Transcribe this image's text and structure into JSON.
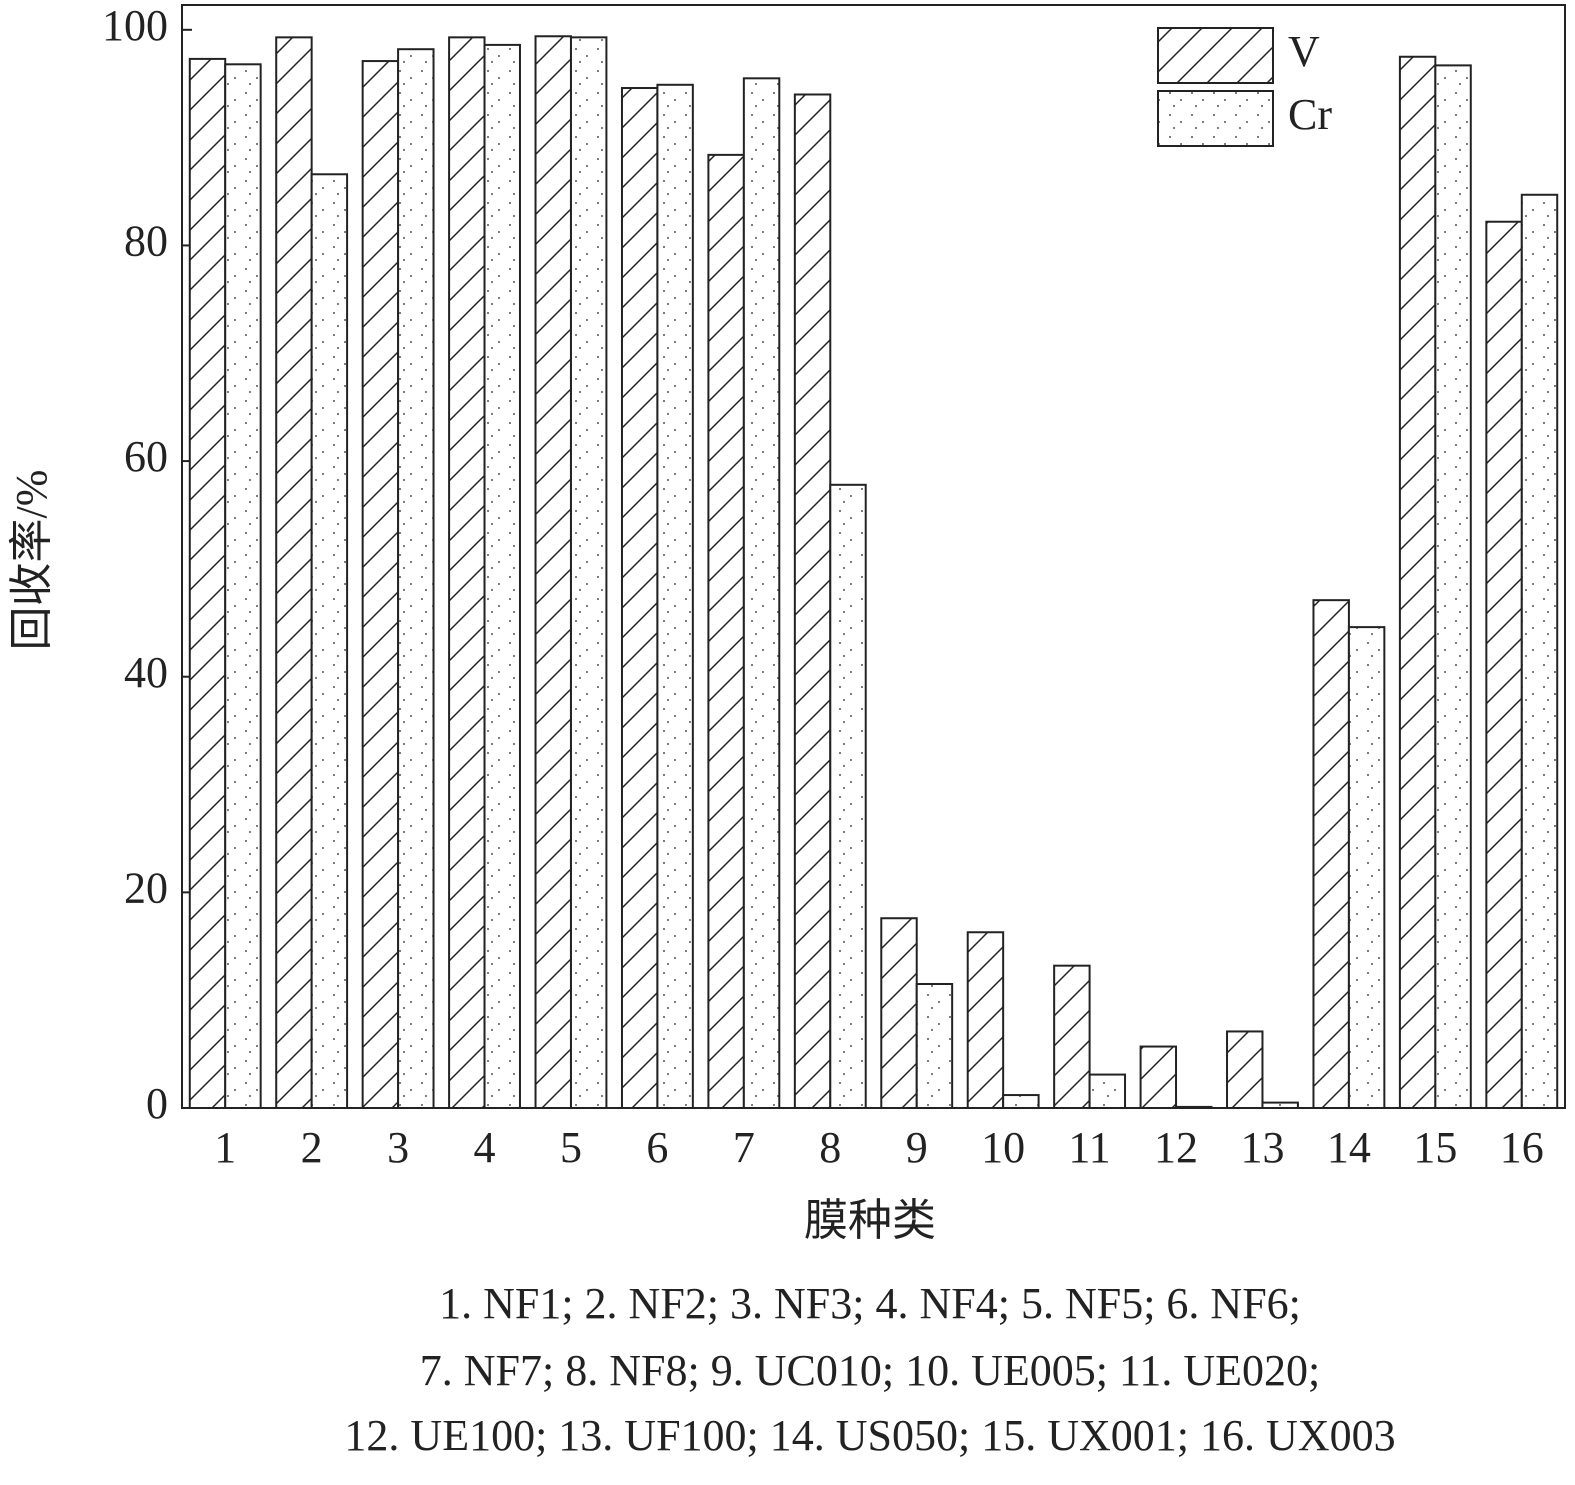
{
  "chart_data": {
    "type": "bar",
    "y_label": "回收率/%",
    "x_label": "膜种类",
    "categories": [
      "1",
      "2",
      "3",
      "4",
      "5",
      "6",
      "7",
      "8",
      "9",
      "10",
      "11",
      "12",
      "13",
      "14",
      "15",
      "16"
    ],
    "series": [
      {
        "name": "V",
        "color": "#222222",
        "pattern": "hatch",
        "values": [
          97.3,
          99.3,
          97.1,
          99.3,
          99.4,
          94.6,
          88.4,
          94.0,
          17.6,
          16.3,
          13.2,
          5.7,
          7.1,
          47.1,
          97.5,
          82.2
        ]
      },
      {
        "name": "Cr",
        "color": "#222222",
        "pattern": "dots",
        "values": [
          96.8,
          86.6,
          98.2,
          98.6,
          99.3,
          94.9,
          95.5,
          57.8,
          11.5,
          1.2,
          3.1,
          0.1,
          0.5,
          44.6,
          96.7,
          84.7
        ]
      }
    ],
    "ylim": [
      0,
      102.3
    ],
    "yticks": [
      0,
      20,
      40,
      60,
      80,
      100
    ],
    "legend": "upper right",
    "note": [
      "1. NF1; 2. NF2; 3. NF3; 4. NF4; 5. NF5; 6. NF6;",
      "7. NF7; 8. NF8; 9. UC010; 10. UE005; 11. UE020;",
      "12. UE100; 13. UF100; 14. US050; 15. UX001; 16. UX003"
    ]
  }
}
